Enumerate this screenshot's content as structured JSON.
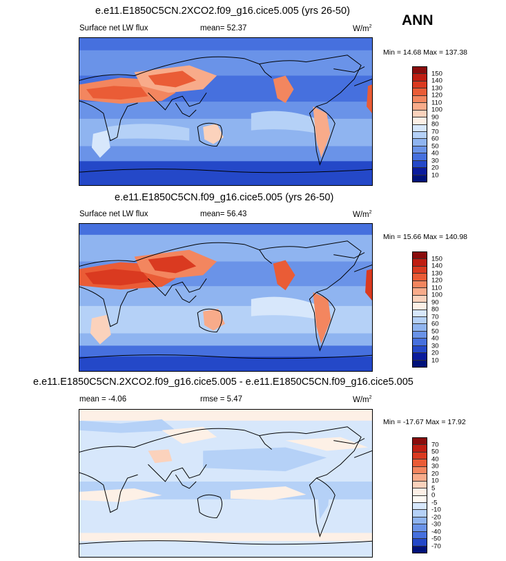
{
  "season": "ANN",
  "units_base": "W/m",
  "units_exp": "2",
  "panels": [
    {
      "title": "e.e11.E1850C5CN.2XCO2.f09_g16.cice5.005 (yrs 26-50)",
      "left_label": "Surface net LW flux",
      "mean_text": "mean=  52.37",
      "minmax": "Min =  14.68 Max = 137.38",
      "colorbar_labels": [
        "150",
        "140",
        "130",
        "120",
        "110",
        "100",
        "90",
        "80",
        "70",
        "60",
        "50",
        "40",
        "30",
        "20",
        "10"
      ]
    },
    {
      "title": "e.e11.E1850C5CN.f09_g16.cice5.005 (yrs 26-50)",
      "left_label": "Surface net LW flux",
      "mean_text": "mean=  56.43",
      "minmax": "Min =  15.66 Max = 140.98",
      "colorbar_labels": [
        "150",
        "140",
        "130",
        "120",
        "110",
        "100",
        "90",
        "80",
        "70",
        "60",
        "50",
        "40",
        "30",
        "20",
        "10"
      ]
    },
    {
      "title": "e.e11.E1850C5CN.2XCO2.f09_g16.cice5.005 - e.e11.E1850C5CN.f09_g16.cice5.005",
      "left_label": "mean =  -4.06",
      "mean_text": "rmse =  5.47",
      "minmax": "Min = -17.67 Max =  17.92",
      "colorbar_labels": [
        "70",
        "50",
        "40",
        "30",
        "20",
        "10",
        "5",
        "0",
        "-5",
        "-10",
        "-20",
        "-30",
        "-40",
        "-50",
        "-70"
      ]
    }
  ],
  "colors": {
    "abs_colorbar": [
      "#8a0c0c",
      "#bf1e12",
      "#da3a20",
      "#ea5c36",
      "#f3865f",
      "#f8ab8a",
      "#fbd2bc",
      "#fdf0e6",
      "#d7e7fb",
      "#b5d1f7",
      "#8fb4f0",
      "#6a93e8",
      "#4670de",
      "#2448c8",
      "#0b1c9c",
      "#00127a"
    ],
    "diff_colorbar": [
      "#8a0c0c",
      "#bf1e12",
      "#da3a20",
      "#ea5c36",
      "#f3865f",
      "#f8ab8a",
      "#fbd2bc",
      "#fdf0e6",
      "#fffaf4",
      "#d7e7fb",
      "#b5d1f7",
      "#8fb4f0",
      "#6a93e8",
      "#4670de",
      "#2448c8",
      "#00127a"
    ]
  }
}
